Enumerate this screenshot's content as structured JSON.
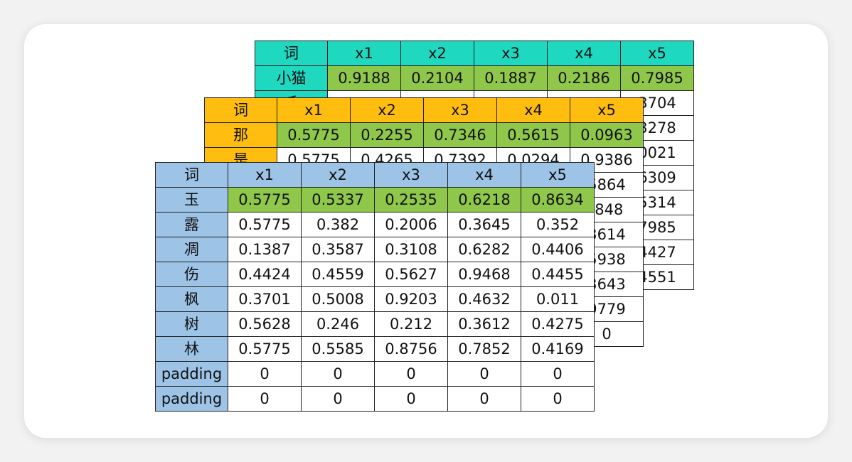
{
  "tables": [
    {
      "header": [
        "词",
        "x1",
        "x2",
        "x3",
        "x4",
        "x5"
      ],
      "rows": [
        [
          "小猫",
          "0.9188",
          "0.2104",
          "0.1887",
          "0.2186",
          "0.7985"
        ],
        [
          "毛",
          "",
          "",
          "",
          "",
          "3704"
        ],
        [
          "",
          "",
          "",
          "",
          "",
          "3278"
        ],
        [
          "",
          "",
          "",
          "",
          "",
          "0021"
        ],
        [
          "",
          "",
          "",
          "",
          "",
          "6309"
        ],
        [
          "",
          "",
          "",
          "",
          "",
          "5314"
        ],
        [
          "",
          "",
          "",
          "",
          "",
          "7985"
        ],
        [
          "",
          "",
          "",
          "",
          "",
          "4427"
        ],
        [
          "",
          "",
          "",
          "",
          "",
          "4551"
        ]
      ]
    },
    {
      "header": [
        "词",
        "x1",
        "x2",
        "x3",
        "x4",
        "x5"
      ],
      "rows": [
        [
          "那",
          "0.5775",
          "0.2255",
          "0.7346",
          "0.5615",
          "0.0963"
        ],
        [
          "是",
          "0.5775",
          "0.4265",
          "0.7392",
          "0.0294",
          "0.9386"
        ],
        [
          "",
          "",
          "",
          "",
          "",
          "5864"
        ],
        [
          "",
          "",
          "",
          "",
          "",
          ".848"
        ],
        [
          "",
          "",
          "",
          "",
          "",
          "3614"
        ],
        [
          "",
          "",
          "",
          "",
          "",
          "5938"
        ],
        [
          "",
          "",
          "",
          "",
          "",
          "3643"
        ],
        [
          "",
          "",
          "",
          "",
          "",
          "9779"
        ],
        [
          "",
          "",
          "",
          "",
          "",
          "0"
        ]
      ]
    },
    {
      "header": [
        "词",
        "x1",
        "x2",
        "x3",
        "x4",
        "x5"
      ],
      "rows": [
        [
          "玉",
          "0.5775",
          "0.5337",
          "0.2535",
          "0.6218",
          "0.8634"
        ],
        [
          "露",
          "0.5775",
          "0.382",
          "0.2006",
          "0.3645",
          "0.352"
        ],
        [
          "凋",
          "0.1387",
          "0.3587",
          "0.3108",
          "0.6282",
          "0.4406"
        ],
        [
          "伤",
          "0.4424",
          "0.4559",
          "0.5627",
          "0.9468",
          "0.4455"
        ],
        [
          "枫",
          "0.3701",
          "0.5008",
          "0.9203",
          "0.4632",
          "0.011"
        ],
        [
          "树",
          "0.5628",
          "0.246",
          "0.212",
          "0.3612",
          "0.4275"
        ],
        [
          "林",
          "0.5775",
          "0.5585",
          "0.8756",
          "0.7852",
          "0.4169"
        ],
        [
          "padding",
          "0",
          "0",
          "0",
          "0",
          "0"
        ],
        [
          "padding",
          "0",
          "0",
          "0",
          "0",
          "0"
        ]
      ]
    }
  ]
}
